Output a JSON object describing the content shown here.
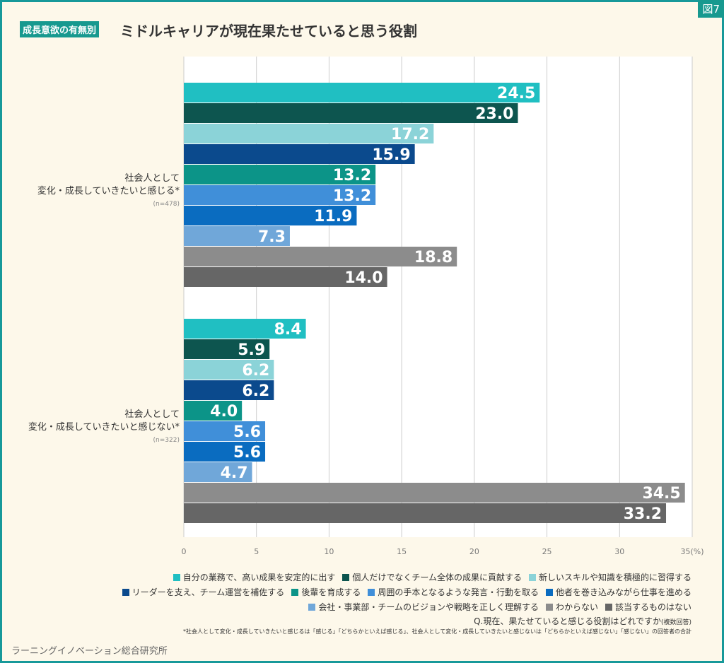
{
  "header": {
    "figure_no": "図7",
    "tag": "成長意欲の有無別",
    "title": "ミドルキャリアが現在果たせていると思う役割"
  },
  "chart_data": {
    "type": "bar",
    "orientation": "horizontal",
    "unit": "(%)",
    "xlim": [
      0,
      35
    ],
    "ticks": [
      "0",
      "5",
      "10",
      "15",
      "20",
      "25",
      "30",
      "35"
    ],
    "grid": true,
    "categories": [
      {
        "label1": "社会人として",
        "label2": "変化・成長していきたいと感じる*",
        "n": "(n=478)"
      },
      {
        "label1": "社会人として",
        "label2": "変化・成長していきたいと感じない*",
        "n": "(n=322)"
      }
    ],
    "series": [
      {
        "name": "自分の業務で、高い成果を安定的に出す",
        "color": "#20bfc2",
        "values": [
          24.5,
          8.4
        ]
      },
      {
        "name": "個人だけでなくチーム全体の成果に貢献する",
        "color": "#0d554f",
        "values": [
          23.0,
          5.9
        ]
      },
      {
        "name": "新しいスキルや知識を積極的に習得する",
        "color": "#8bd3d8",
        "values": [
          17.2,
          6.2
        ]
      },
      {
        "name": "リーダーを支え、チーム運営を補佐する",
        "color": "#0b4a8d",
        "values": [
          15.9,
          6.2
        ]
      },
      {
        "name": "後輩を育成する",
        "color": "#0c9488",
        "values": [
          13.2,
          4.0
        ]
      },
      {
        "name": "周囲の手本となるような発言・行動を取る",
        "color": "#408fd9",
        "values": [
          13.2,
          5.6
        ]
      },
      {
        "name": "他者を巻き込みながら仕事を進める",
        "color": "#0a6cc0",
        "values": [
          11.9,
          5.6
        ]
      },
      {
        "name": "会社・事業部・チームのビジョンや戦略を正しく理解する",
        "color": "#70a7d9",
        "values": [
          7.3,
          4.7
        ]
      },
      {
        "name": "わからない",
        "color": "#8c8c8c",
        "values": [
          18.8,
          34.5
        ]
      },
      {
        "name": "該当するものはない",
        "color": "#666666",
        "values": [
          14.0,
          33.2
        ]
      }
    ]
  },
  "notes": {
    "question": "Q.現在、果たせていると感じる役割はどれですか",
    "question_suffix": "(複数回答)",
    "footnote": "*社会人として変化・成長していきたいと感じるは「感じる」「どちらかといえば感じる」、社会人として変化・成長していきたいと感じないは「どちらかといえば感じない」「感じない」の回答者の合計",
    "org": "ラーニングイノベーション総合研究所"
  }
}
